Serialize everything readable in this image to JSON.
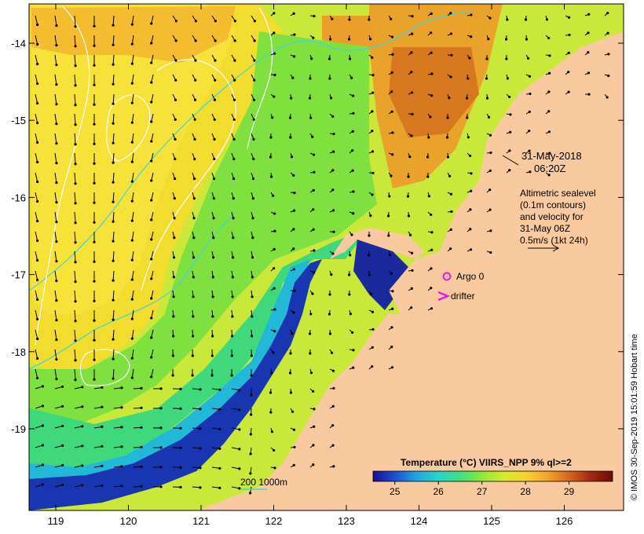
{
  "map": {
    "date_line1": "31-May-2018",
    "date_line2": "06:20Z",
    "altimetry_lines": [
      "Altimetric sealevel",
      "(0.1m contours)",
      "and velocity for",
      "31-May 06Z",
      "0.5m/s (1kt 24h)"
    ],
    "legend_argo": "Argo 0",
    "legend_drifter": "drifter",
    "depth_label": "200  1000m",
    "credit": "© IMOS 30-Sep-2019 15:01:59 Hobart time",
    "colorbar": {
      "title": "Temperature (°C) VIIRS_NPP 9% ql>=2",
      "ticks": [
        "25",
        "26",
        "27",
        "28",
        "29"
      ],
      "range": [
        24.5,
        30.0
      ],
      "colors": [
        "#1a0f8c",
        "#1e4fd1",
        "#1fa5e0",
        "#27d6c8",
        "#3fe080",
        "#8ee83a",
        "#d6ec2e",
        "#f5d430",
        "#f0a52a",
        "#d8661c",
        "#a32712",
        "#6b0d05"
      ]
    },
    "lon_ticks": [
      "119",
      "120",
      "121",
      "122",
      "123",
      "124",
      "125",
      "126"
    ],
    "lat_ticks": [
      "-14",
      "-15",
      "-16",
      "-17",
      "-18",
      "-19"
    ],
    "colors": {
      "land": "#f9caa0",
      "argo": "#e020e0",
      "drifter": "#e020e0",
      "depth_contour": "#3fd6d6",
      "sealevel_contour": "#ffffff",
      "arrows": "#000000"
    }
  }
}
